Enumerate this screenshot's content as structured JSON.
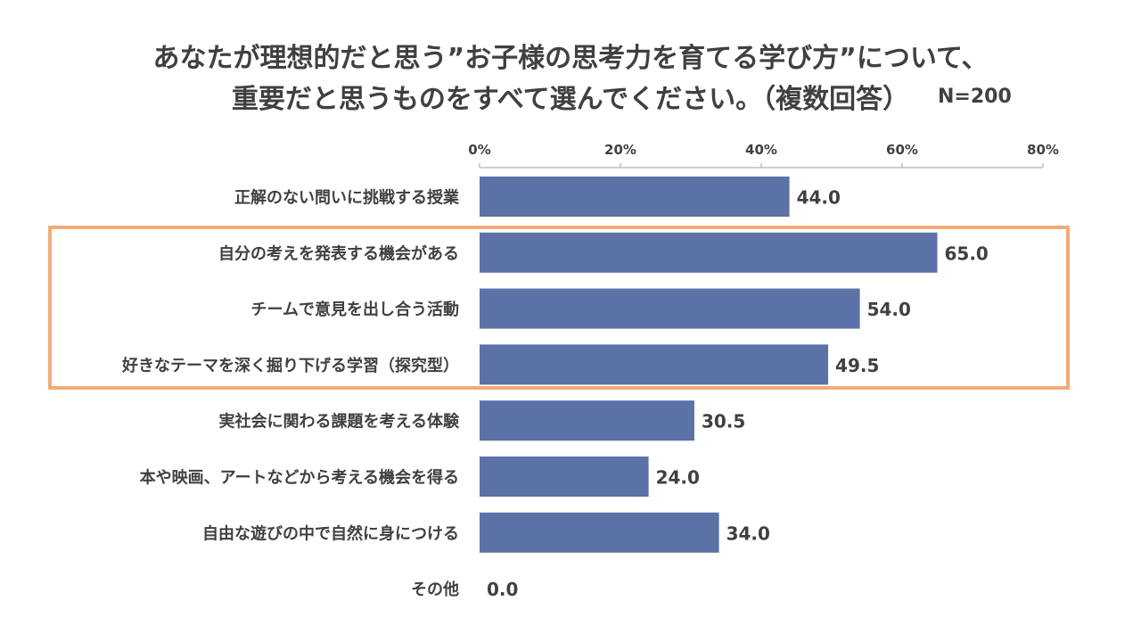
{
  "title": {
    "line1": "あなたが理想的だと思う”お子様の思考力を育てる学び方”について、",
    "line2": "重要だと思うものをすべて選んでください。（複数回答）",
    "n_label": "N=200"
  },
  "colors": {
    "bar": "#5a72a6",
    "highlight": "#f0ac78",
    "text": "#404040",
    "axis": "#bfbfbf"
  },
  "chart_data": {
    "type": "bar",
    "orientation": "horizontal",
    "categories": [
      "正解のない問いに挑戦する授業",
      "自分の考えを発表する機会がある",
      "チームで意見を出し合う活動",
      "好きなテーマを深く掘り下げる学習（探究型）",
      "実社会に関わる課題を考える体験",
      "本や映画、アートなどから考える機会を得る",
      "自由な遊びの中で自然に身につける",
      "その他"
    ],
    "values": [
      44.0,
      65.0,
      54.0,
      49.5,
      30.5,
      24.0,
      34.0,
      0.0
    ],
    "value_labels": [
      "44.0",
      "65.0",
      "54.0",
      "49.5",
      "30.5",
      "24.0",
      "34.0",
      "0.0"
    ],
    "xlim": [
      0,
      80
    ],
    "ticks": [
      0,
      20,
      40,
      60,
      80
    ],
    "tick_labels": [
      "0%",
      "20%",
      "40%",
      "60%",
      "80%"
    ],
    "axis_position": "top",
    "grid": false,
    "highlighted_categories": [
      1,
      2,
      3
    ]
  }
}
